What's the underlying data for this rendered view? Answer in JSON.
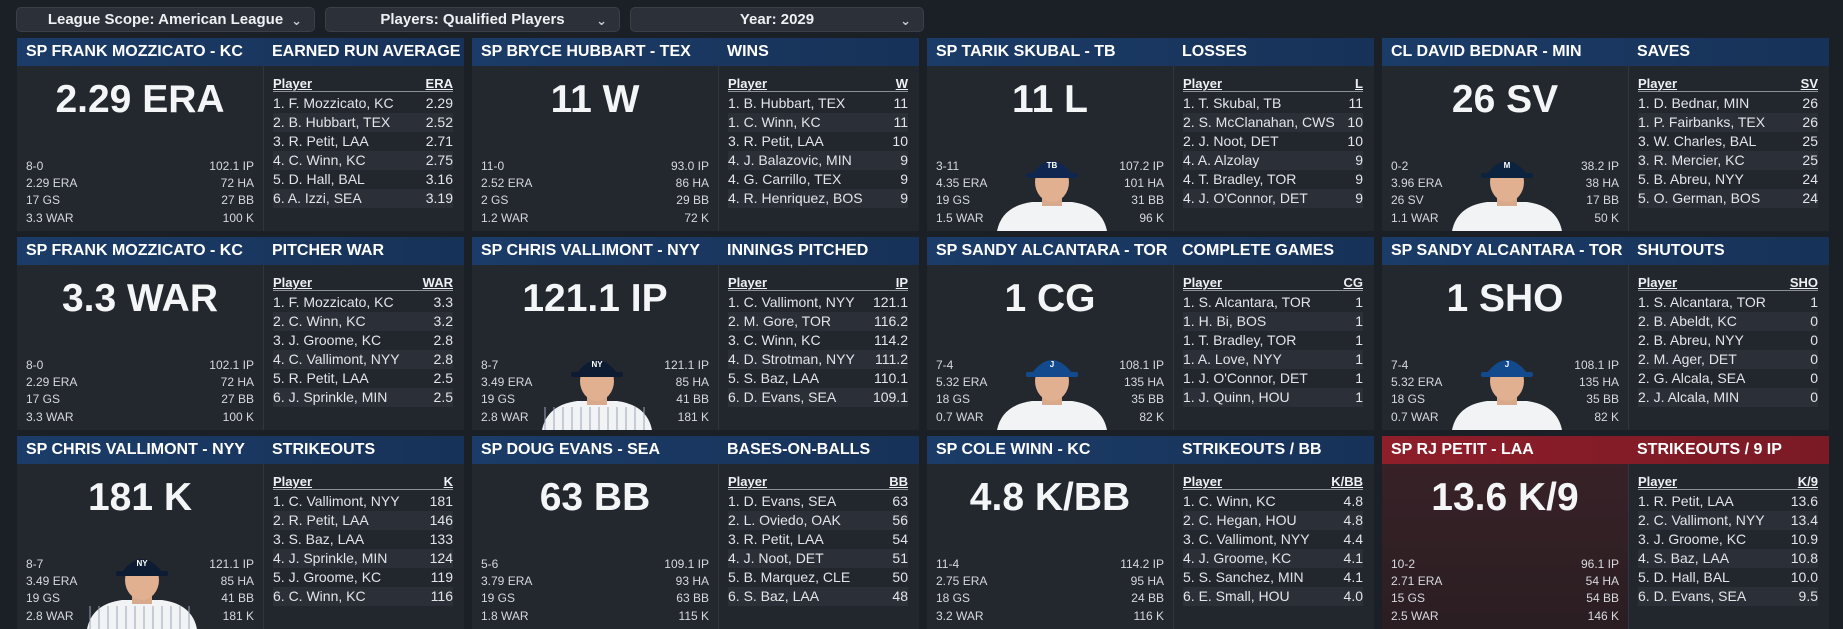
{
  "filters": {
    "scope": "League Scope: American League",
    "players": "Players: Qualified Players",
    "year": "Year: 2029"
  },
  "panels": [
    {
      "player": "SP FRANK MOZZICATO - KC",
      "category": "EARNED RUN AVERAGE",
      "big": "2.29 ERA",
      "mini": [
        [
          "8-0",
          "102.1 IP"
        ],
        [
          "2.29 ERA",
          "72 HA"
        ],
        [
          "17 GS",
          "27 BB"
        ],
        [
          "3.3 WAR",
          "100 K"
        ]
      ],
      "avatar": "none",
      "col_player": "Player",
      "col_stat": "ERA",
      "rows": [
        [
          "1. F. Mozzicato, KC",
          "2.29"
        ],
        [
          "2. B. Hubbart, TEX",
          "2.52"
        ],
        [
          "3. R. Petit, LAA",
          "2.71"
        ],
        [
          "4. C. Winn, KC",
          "2.75"
        ],
        [
          "5. D. Hall, BAL",
          "3.16"
        ],
        [
          "6. A. Izzi, SEA",
          "3.19"
        ]
      ]
    },
    {
      "player": "SP BRYCE HUBBART - TEX",
      "category": "WINS",
      "big": "11 W",
      "mini": [
        [
          "11-0",
          "93.0 IP"
        ],
        [
          "2.52 ERA",
          "86 HA"
        ],
        [
          "2 GS",
          "29 BB"
        ],
        [
          "1.2 WAR",
          "72 K"
        ]
      ],
      "avatar": "none",
      "col_player": "Player",
      "col_stat": "W",
      "rows": [
        [
          "1. B. Hubbart, TEX",
          "11"
        ],
        [
          "1. C. Winn, KC",
          "11"
        ],
        [
          "3. R. Petit, LAA",
          "10"
        ],
        [
          "4. J. Balazovic, MIN",
          "9"
        ],
        [
          "4. G. Carrillo, TEX",
          "9"
        ],
        [
          "4. R. Henriquez, BOS",
          "9"
        ]
      ]
    },
    {
      "player": "SP TARIK SKUBAL - TB",
      "category": "LOSSES",
      "big": "11 L",
      "mini": [
        [
          "3-11",
          "107.2 IP"
        ],
        [
          "4.35 ERA",
          "101 HA"
        ],
        [
          "19 GS",
          "31 BB"
        ],
        [
          "1.5 WAR",
          "96 K"
        ]
      ],
      "avatar": "tb",
      "col_player": "Player",
      "col_stat": "L",
      "rows": [
        [
          "1. T. Skubal, TB",
          "11"
        ],
        [
          "2. S. McClanahan, CWS",
          "10"
        ],
        [
          "2. J. Noot, DET",
          "10"
        ],
        [
          "4. A. Alzolay",
          "9"
        ],
        [
          "4. T. Bradley, TOR",
          "9"
        ],
        [
          "4. J. O'Connor, DET",
          "9"
        ]
      ]
    },
    {
      "player": "CL DAVID BEDNAR - MIN",
      "category": "SAVES",
      "big": "26 SV",
      "mini": [
        [
          "0-2",
          "38.2 IP"
        ],
        [
          "3.96 ERA",
          "38 HA"
        ],
        [
          "26 SV",
          "17 BB"
        ],
        [
          "1.1 WAR",
          "50 K"
        ]
      ],
      "avatar": "min",
      "col_player": "Player",
      "col_stat": "SV",
      "rows": [
        [
          "1. D. Bednar, MIN",
          "26"
        ],
        [
          "1. P. Fairbanks, TEX",
          "26"
        ],
        [
          "3. W. Charles, BAL",
          "25"
        ],
        [
          "3. R. Mercier, KC",
          "25"
        ],
        [
          "5. B. Abreu, NYY",
          "24"
        ],
        [
          "5. O. German, BOS",
          "24"
        ]
      ]
    },
    {
      "player": "SP FRANK MOZZICATO - KC",
      "category": "PITCHER WAR",
      "big": "3.3 WAR",
      "mini": [
        [
          "8-0",
          "102.1 IP"
        ],
        [
          "2.29 ERA",
          "72 HA"
        ],
        [
          "17 GS",
          "27 BB"
        ],
        [
          "3.3 WAR",
          "100 K"
        ]
      ],
      "avatar": "none",
      "col_player": "Player",
      "col_stat": "WAR",
      "rows": [
        [
          "1. F. Mozzicato, KC",
          "3.3"
        ],
        [
          "2. C. Winn, KC",
          "3.2"
        ],
        [
          "3. J. Groome, KC",
          "2.8"
        ],
        [
          "4. C. Vallimont, NYY",
          "2.8"
        ],
        [
          "5. R. Petit, LAA",
          "2.5"
        ],
        [
          "6. J. Sprinkle, MIN",
          "2.5"
        ]
      ]
    },
    {
      "player": "SP CHRIS VALLIMONT - NYY",
      "category": "INNINGS PITCHED",
      "big": "121.1 IP",
      "mini": [
        [
          "8-7",
          "121.1 IP"
        ],
        [
          "3.49 ERA",
          "85 HA"
        ],
        [
          "19 GS",
          "41 BB"
        ],
        [
          "2.8 WAR",
          "181 K"
        ]
      ],
      "avatar": "nyy",
      "col_player": "Player",
      "col_stat": "IP",
      "rows": [
        [
          "1. C. Vallimont, NYY",
          "121.1"
        ],
        [
          "2. M. Gore, TOR",
          "116.2"
        ],
        [
          "3. C. Winn, KC",
          "114.2"
        ],
        [
          "4. D. Strotman, NYY",
          "111.2"
        ],
        [
          "5. S. Baz, LAA",
          "110.1"
        ],
        [
          "6. D. Evans, SEA",
          "109.1"
        ]
      ]
    },
    {
      "player": "SP SANDY ALCANTARA - TOR",
      "category": "COMPLETE GAMES",
      "big": "1 CG",
      "mini": [
        [
          "7-4",
          "108.1 IP"
        ],
        [
          "5.32 ERA",
          "135 HA"
        ],
        [
          "18 GS",
          "35 BB"
        ],
        [
          "0.7 WAR",
          "82 K"
        ]
      ],
      "avatar": "tor",
      "col_player": "Player",
      "col_stat": "CG",
      "rows": [
        [
          "1. S. Alcantara, TOR",
          "1"
        ],
        [
          "1. H. Bi, BOS",
          "1"
        ],
        [
          "1. T. Bradley, TOR",
          "1"
        ],
        [
          "1. A. Love, NYY",
          "1"
        ],
        [
          "1. J. O'Connor, DET",
          "1"
        ],
        [
          "1. J. Quinn, HOU",
          "1"
        ]
      ]
    },
    {
      "player": "SP SANDY ALCANTARA - TOR",
      "category": "SHUTOUTS",
      "big": "1 SHO",
      "mini": [
        [
          "7-4",
          "108.1 IP"
        ],
        [
          "5.32 ERA",
          "135 HA"
        ],
        [
          "18 GS",
          "35 BB"
        ],
        [
          "0.7 WAR",
          "82 K"
        ]
      ],
      "avatar": "tor",
      "col_player": "Player",
      "col_stat": "SHO",
      "rows": [
        [
          "1. S. Alcantara, TOR",
          "1"
        ],
        [
          "2. B. Abeldt, KC",
          "0"
        ],
        [
          "2. B. Abreu, NYY",
          "0"
        ],
        [
          "2. M. Ager, DET",
          "0"
        ],
        [
          "2. G. Alcala, SEA",
          "0"
        ],
        [
          "2. J. Alcala, MIN",
          "0"
        ]
      ]
    },
    {
      "player": "SP CHRIS VALLIMONT - NYY",
      "category": "STRIKEOUTS",
      "big": "181 K",
      "mini": [
        [
          "8-7",
          "121.1 IP"
        ],
        [
          "3.49 ERA",
          "85 HA"
        ],
        [
          "19 GS",
          "41 BB"
        ],
        [
          "2.8 WAR",
          "181 K"
        ]
      ],
      "avatar": "nyy",
      "col_player": "Player",
      "col_stat": "K",
      "rows": [
        [
          "1. C. Vallimont, NYY",
          "181"
        ],
        [
          "2. R. Petit, LAA",
          "146"
        ],
        [
          "3. S. Baz, LAA",
          "133"
        ],
        [
          "4. J. Sprinkle, MIN",
          "124"
        ],
        [
          "5. J. Groome, KC",
          "119"
        ],
        [
          "6. C. Winn, KC",
          "116"
        ]
      ]
    },
    {
      "player": "SP DOUG EVANS - SEA",
      "category": "BASES-ON-BALLS",
      "big": "63 BB",
      "mini": [
        [
          "5-6",
          "109.1 IP"
        ],
        [
          "3.79 ERA",
          "93 HA"
        ],
        [
          "19 GS",
          "63 BB"
        ],
        [
          "1.8 WAR",
          "115 K"
        ]
      ],
      "avatar": "none",
      "col_player": "Player",
      "col_stat": "BB",
      "rows": [
        [
          "1. D. Evans, SEA",
          "63"
        ],
        [
          "2. L. Oviedo, OAK",
          "56"
        ],
        [
          "3. R. Petit, LAA",
          "54"
        ],
        [
          "4. J. Noot, DET",
          "51"
        ],
        [
          "5. B. Marquez, CLE",
          "50"
        ],
        [
          "6. S. Baz, LAA",
          "48"
        ]
      ]
    },
    {
      "player": "SP COLE WINN - KC",
      "category": "STRIKEOUTS / BB",
      "big": "4.8 K/BB",
      "mini": [
        [
          "11-4",
          "114.2 IP"
        ],
        [
          "2.75 ERA",
          "95 HA"
        ],
        [
          "18 GS",
          "24 BB"
        ],
        [
          "3.2 WAR",
          "116 K"
        ]
      ],
      "avatar": "none",
      "col_player": "Player",
      "col_stat": "K/BB",
      "rows": [
        [
          "1. C. Winn, KC",
          "4.8"
        ],
        [
          "2. C. Hegan, HOU",
          "4.8"
        ],
        [
          "3. C. Vallimont, NYY",
          "4.4"
        ],
        [
          "4. J. Groome, KC",
          "4.1"
        ],
        [
          "5. S. Sanchez, MIN",
          "4.1"
        ],
        [
          "6. E. Small, HOU",
          "4.0"
        ]
      ]
    },
    {
      "player": "SP RJ PETIT - LAA",
      "category": "STRIKEOUTS / 9 IP",
      "big": "13.6 K/9",
      "mini": [
        [
          "10-2",
          "96.1 IP"
        ],
        [
          "2.71 ERA",
          "54 HA"
        ],
        [
          "15 GS",
          "54 BB"
        ],
        [
          "2.5 WAR",
          "146 K"
        ]
      ],
      "avatar": "none",
      "col_player": "Player",
      "col_stat": "K/9",
      "rows": [
        [
          "1. R. Petit, LAA",
          "13.6"
        ],
        [
          "2. C. Vallimont, NYY",
          "13.4"
        ],
        [
          "3. J. Groome, KC",
          "10.9"
        ],
        [
          "4. S. Baz, LAA",
          "10.8"
        ],
        [
          "5. D. Hall, BAL",
          "10.0"
        ],
        [
          "6. D. Evans, SEA",
          "9.5"
        ]
      ]
    }
  ],
  "colors": {
    "header_blue": "#1b3c68",
    "header_red": "#8e1e2a",
    "panel_bg": "#23272e",
    "page_bg": "#1b1f26"
  },
  "icons": {
    "dropdown": "chevron-down-icon"
  }
}
